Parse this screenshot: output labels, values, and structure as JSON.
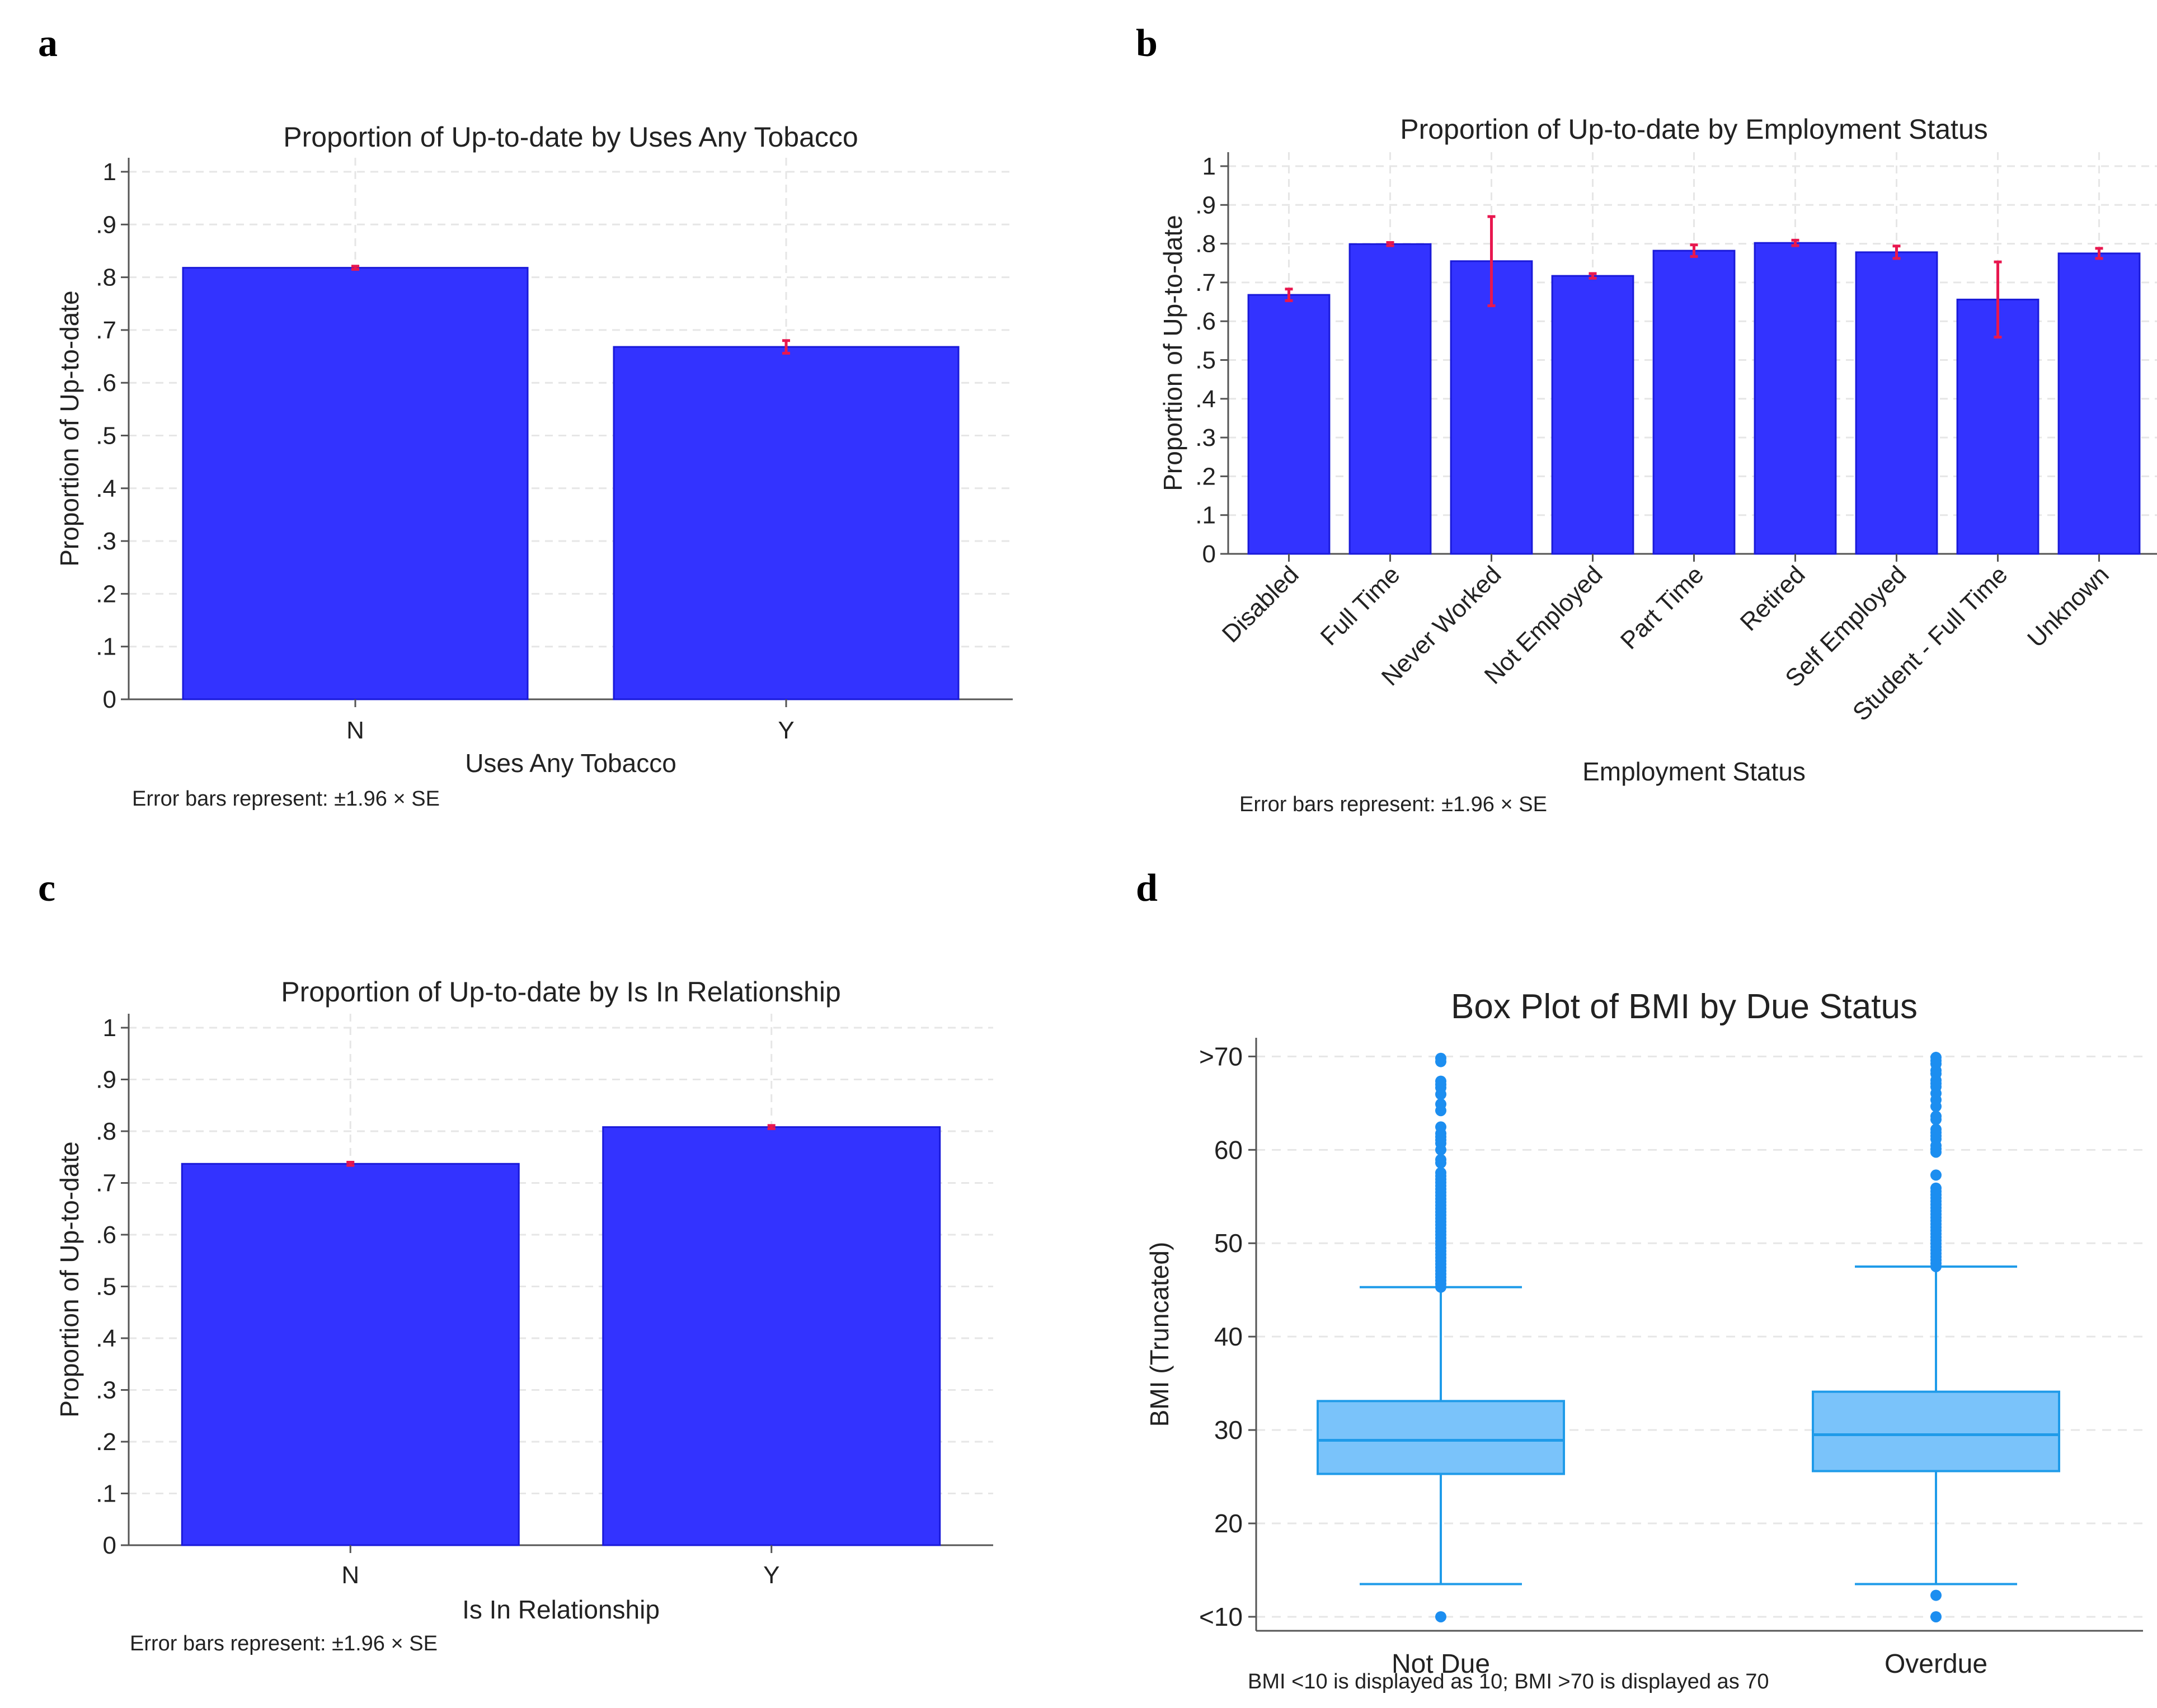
{
  "figure": {
    "panel_labels": [
      "a",
      "b",
      "c",
      "d"
    ],
    "colors": {
      "bar_fill": "#3333ff",
      "bar_stroke": "#1a1ad9",
      "error_bar": "#e8174f",
      "box_fill": "#7ac3fa",
      "box_stroke": "#1f9be9",
      "outlier": "#1c8ef0",
      "grid": "#e6e6e6",
      "axis": "#555555"
    }
  },
  "chart_data": [
    {
      "id": "a",
      "type": "bar",
      "title": "Proportion of Up-to-date by Uses Any Tobacco",
      "xlabel": "Uses Any Tobacco",
      "ylabel": "Proportion of Up-to-date",
      "ylim": [
        0,
        1
      ],
      "yticks": [
        0,
        0.1,
        0.2,
        0.3,
        0.4,
        0.5,
        0.6,
        0.7,
        0.8,
        0.9,
        1
      ],
      "ytick_labels": [
        "0",
        ".1",
        ".2",
        ".3",
        ".4",
        ".5",
        ".6",
        ".7",
        ".8",
        ".9",
        "1"
      ],
      "categories": [
        "N",
        "Y"
      ],
      "values": [
        0.818,
        0.668
      ],
      "errors": [
        0.003,
        0.012
      ],
      "note": "Error bars represent: ±1.96 × SE",
      "grid": true
    },
    {
      "id": "b",
      "type": "bar",
      "title": "Proportion of Up-to-date by Employment Status",
      "xlabel": "Employment Status",
      "ylabel": "Proportion of Up-to-date",
      "ylim": [
        0,
        1
      ],
      "yticks": [
        0,
        0.1,
        0.2,
        0.3,
        0.4,
        0.5,
        0.6,
        0.7,
        0.8,
        0.9,
        1
      ],
      "ytick_labels": [
        "0",
        ".1",
        ".2",
        ".3",
        ".4",
        ".5",
        ".6",
        ".7",
        ".8",
        ".9",
        "1"
      ],
      "categories": [
        "Disabled",
        "Full Time",
        "Never Worked",
        "Not Employed",
        "Part Time",
        "Retired",
        "Self Employed",
        "Student - Full Time",
        "Unknown"
      ],
      "values": [
        0.668,
        0.799,
        0.755,
        0.717,
        0.782,
        0.802,
        0.778,
        0.656,
        0.775
      ],
      "errors": [
        0.015,
        0.004,
        0.115,
        0.006,
        0.015,
        0.007,
        0.016,
        0.097,
        0.013
      ],
      "note": "Error bars represent: ±1.96 × SE",
      "grid": true
    },
    {
      "id": "c",
      "type": "bar",
      "title": "Proportion of Up-to-date by Is In Relationship",
      "xlabel": "Is In Relationship",
      "ylabel": "Proportion of Up-to-date",
      "ylim": [
        0,
        1
      ],
      "yticks": [
        0,
        0.1,
        0.2,
        0.3,
        0.4,
        0.5,
        0.6,
        0.7,
        0.8,
        0.9,
        1
      ],
      "ytick_labels": [
        "0",
        ".1",
        ".2",
        ".3",
        ".4",
        ".5",
        ".6",
        ".7",
        ".8",
        ".9",
        "1"
      ],
      "categories": [
        "N",
        "Y"
      ],
      "values": [
        0.737,
        0.808
      ],
      "errors": [
        0.003,
        0.003
      ],
      "note": "Error bars represent: ±1.96 × SE",
      "grid": true
    },
    {
      "id": "d",
      "type": "box",
      "title": "Box Plot of BMI by Due Status",
      "xlabel": "",
      "ylabel": "BMI (Truncated)",
      "ylim": [
        8.5,
        72
      ],
      "yticks": [
        10,
        20,
        30,
        40,
        50,
        60,
        70
      ],
      "ytick_labels": [
        "<10",
        "20",
        "30",
        "40",
        "50",
        "60",
        ">70"
      ],
      "categories": [
        "Not Due",
        "Overdue"
      ],
      "boxes": [
        {
          "q1": 25.3,
          "median": 28.9,
          "q3": 33.1,
          "whisker_low": 13.5,
          "whisker_high": 45.3,
          "outliers_low": [
            10
          ],
          "outliers_high_from": 45.3,
          "outliers_high_to": 70
        },
        {
          "q1": 25.6,
          "median": 29.5,
          "q3": 34.1,
          "whisker_low": 13.5,
          "whisker_high": 47.5,
          "outliers_low": [
            12.3,
            10
          ],
          "outliers_high_from": 47.5,
          "outliers_high_to": 70
        }
      ],
      "note": "BMI <10 is displayed as 10; BMI >70 is displayed as 70",
      "grid": true
    }
  ]
}
